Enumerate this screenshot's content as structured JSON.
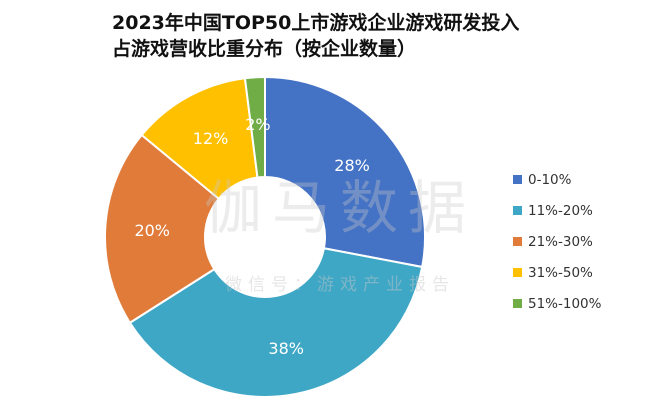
{
  "title": {
    "line1": "2023年中国TOP50上市游戏企业游戏研发投入",
    "line2": "占游戏营收比重分布（按企业数量）"
  },
  "watermark": {
    "main": "伽马数据",
    "sub": "微信号：游戏产业报告"
  },
  "chart_data": {
    "type": "pie",
    "variant": "donut",
    "categories": [
      "0-10%",
      "11%-20%",
      "21%-30%",
      "31%-50%",
      "51%-100%"
    ],
    "values": [
      28,
      38,
      20,
      12,
      2
    ],
    "labels": [
      "28%",
      "38%",
      "20%",
      "12%",
      "2%"
    ],
    "colors": [
      "#4472C4",
      "#3FA7C6",
      "#E07B39",
      "#FFC000",
      "#70AD47"
    ],
    "legend_position": "right"
  }
}
